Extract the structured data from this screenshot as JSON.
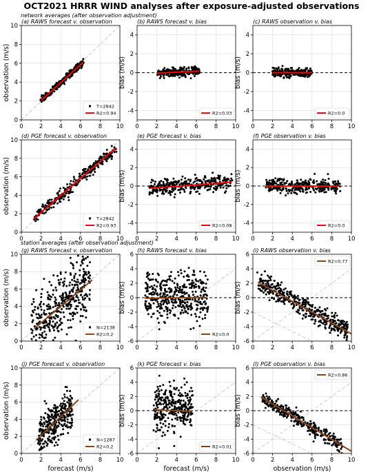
{
  "figure": {
    "title": "OCT2021 HRRR WIND analyses after exposure-adjusted observations",
    "sections": [
      "network averages (after observation adjustment)",
      "station averages (after observation adjustment)"
    ]
  },
  "colors": {
    "points": "#000000",
    "fit_top": "#ff0000",
    "fit_bottom": "#8b4513",
    "one_to_one": "#bbbbbb",
    "zero_line": "#000000"
  },
  "chart_data": [
    {
      "id": "a",
      "type": "scatter",
      "title": "(a) RAWS forecast v. observation",
      "xlabel": "",
      "ylabel": "observation (m/s)",
      "xlim": [
        0,
        10
      ],
      "ylim": [
        0,
        10
      ],
      "xticks": [
        0,
        2,
        4,
        6,
        8,
        10
      ],
      "yticks": [
        0,
        2,
        4,
        6,
        8,
        10
      ],
      "ref_line": "one-to-one",
      "fit": {
        "slope": 0.95,
        "intercept": 0.15,
        "x_range": [
          2.0,
          6.3
        ]
      },
      "cloud": {
        "x_range": [
          2.0,
          6.3
        ],
        "slope": 0.95,
        "intercept": 0.15,
        "spread": 0.18,
        "n": 260
      },
      "legend": {
        "position": "bottom-right",
        "entries": [
          "T=2842",
          "R2=0.94"
        ]
      }
    },
    {
      "id": "b",
      "type": "scatter",
      "title": "(b) RAWS forecast v. bias",
      "xlabel": "",
      "ylabel": "bias (m/s)",
      "xlim": [
        0,
        10
      ],
      "ylim": [
        -5,
        5
      ],
      "xticks": [
        0,
        2,
        4,
        6,
        8,
        10
      ],
      "yticks": [
        -4,
        -2,
        0,
        2,
        4
      ],
      "ref_line": "zero",
      "fit": {
        "slope": 0.05,
        "intercept": -0.15,
        "x_range": [
          2.0,
          6.3
        ]
      },
      "cloud": {
        "x_range": [
          2.0,
          6.3
        ],
        "slope": 0.05,
        "intercept": -0.15,
        "spread": 0.22,
        "n": 260
      },
      "legend": {
        "position": "bottom-right",
        "entries": [
          "R2=0.03"
        ]
      }
    },
    {
      "id": "c",
      "type": "scatter",
      "title": "(c) RAWS observation v. bias",
      "xlabel": "",
      "ylabel": "bias (m/s)",
      "xlim": [
        0,
        10
      ],
      "ylim": [
        -5,
        5
      ],
      "xticks": [
        0,
        2,
        4,
        6,
        8,
        10
      ],
      "yticks": [
        -4,
        -2,
        0,
        2,
        4
      ],
      "ref_line": "zero",
      "fit": {
        "slope": 0.0,
        "intercept": 0.0,
        "x_range": [
          2.0,
          6.0
        ]
      },
      "cloud": {
        "x_range": [
          2.0,
          6.0
        ],
        "slope": 0.0,
        "intercept": 0.0,
        "spread": 0.22,
        "n": 260
      },
      "legend": {
        "position": "bottom-right",
        "entries": [
          "R2=0.0"
        ]
      }
    },
    {
      "id": "d",
      "type": "scatter",
      "title": "(d) PGE forecast v. observation",
      "xlabel": "",
      "ylabel": "observation (m/s)",
      "xlim": [
        0,
        10
      ],
      "ylim": [
        0,
        10
      ],
      "xticks": [
        0,
        2,
        4,
        6,
        8,
        10
      ],
      "yticks": [
        0,
        2,
        4,
        6,
        8,
        10
      ],
      "ref_line": "one-to-one",
      "fit": {
        "slope": 0.92,
        "intercept": 0.3,
        "x_range": [
          1.2,
          9.6
        ]
      },
      "cloud": {
        "x_range": [
          1.2,
          9.6
        ],
        "slope": 0.92,
        "intercept": 0.3,
        "spread": 0.35,
        "n": 320
      },
      "legend": {
        "position": "bottom-right",
        "entries": [
          "T=2842",
          "R2=0.93"
        ]
      }
    },
    {
      "id": "e",
      "type": "scatter",
      "title": "(e) PGE forecast v. bias",
      "xlabel": "",
      "ylabel": "bias (m/s)",
      "xlim": [
        0,
        10
      ],
      "ylim": [
        -5,
        5
      ],
      "xticks": [
        0,
        2,
        4,
        6,
        8,
        10
      ],
      "yticks": [
        -4,
        -2,
        0,
        2,
        4
      ],
      "ref_line": "zero",
      "fit": {
        "slope": 0.08,
        "intercept": -0.35,
        "x_range": [
          1.2,
          9.6
        ]
      },
      "cloud": {
        "x_range": [
          1.2,
          9.6
        ],
        "slope": 0.08,
        "intercept": -0.35,
        "spread": 0.4,
        "n": 320
      },
      "legend": {
        "position": "bottom-right",
        "entries": [
          "R2=0.08"
        ]
      }
    },
    {
      "id": "f",
      "type": "scatter",
      "title": "(f) PGE observation v. bias",
      "xlabel": "",
      "ylabel": "bias (m/s)",
      "xlim": [
        0,
        10
      ],
      "ylim": [
        -5,
        5
      ],
      "xticks": [
        0,
        2,
        4,
        6,
        8,
        10
      ],
      "yticks": [
        -4,
        -2,
        0,
        2,
        4
      ],
      "ref_line": "zero",
      "fit": {
        "slope": 0.0,
        "intercept": 0.0,
        "x_range": [
          1.3,
          8.8
        ]
      },
      "cloud": {
        "x_range": [
          1.3,
          8.8
        ],
        "slope": 0.0,
        "intercept": 0.0,
        "spread": 0.4,
        "n": 320
      },
      "legend": {
        "position": "bottom-right",
        "entries": [
          "R2=0.0"
        ]
      }
    },
    {
      "id": "g",
      "type": "scatter",
      "title": "(g) RAWS forecast v. observation",
      "xlabel": "",
      "ylabel": "observation (m/s)",
      "xlim": [
        0,
        10
      ],
      "ylim": [
        0,
        10
      ],
      "xticks": [
        0,
        2,
        4,
        6,
        8,
        10
      ],
      "yticks": [
        0,
        2,
        4,
        6,
        8,
        10
      ],
      "ref_line": "one-to-one",
      "fit": {
        "slope": 0.95,
        "intercept": 0.2,
        "x_range": [
          1.3,
          7.2
        ]
      },
      "cloud": {
        "x_range": [
          1.0,
          7.0
        ],
        "slope": 0.95,
        "intercept": 0.2,
        "spread": 1.8,
        "n": 420
      },
      "legend": {
        "position": "bottom-right",
        "entries": [
          "N=2138",
          "R2=0.2"
        ]
      }
    },
    {
      "id": "h",
      "type": "scatter",
      "title": "(h) RAWS forecast v. bias",
      "xlabel": "",
      "ylabel": "bias (m/s)",
      "xlim": [
        0,
        10
      ],
      "ylim": [
        -6,
        6
      ],
      "xticks": [
        0,
        2,
        4,
        6,
        8,
        10
      ],
      "yticks": [
        -6,
        -4,
        -2,
        0,
        2,
        4,
        6
      ],
      "ref_line": "zero",
      "fit": {
        "slope": 0.02,
        "intercept": -0.1,
        "x_range": [
          0.8,
          7.0
        ]
      },
      "cloud": {
        "x_range": [
          0.8,
          7.2
        ],
        "slope": 0.0,
        "intercept": 0.2,
        "spread": 1.7,
        "n": 420
      },
      "legend": {
        "position": "bottom-right",
        "entries": [
          "R2=0.0"
        ]
      }
    },
    {
      "id": "i",
      "type": "scatter",
      "title": "(i) RAWS observation v. bias",
      "xlabel": "",
      "ylabel": "bias (m/s)",
      "xlim": [
        0,
        10
      ],
      "ylim": [
        -6,
        6
      ],
      "xticks": [
        0,
        2,
        4,
        6,
        8,
        10
      ],
      "yticks": [
        -6,
        -4,
        -2,
        0,
        2,
        4,
        6
      ],
      "ref_line": "zero",
      "fit": {
        "slope": -0.75,
        "intercept": 2.5,
        "x_range": [
          0.5,
          10.0
        ]
      },
      "cloud": {
        "x_range": [
          0.5,
          9.6
        ],
        "slope": -0.75,
        "intercept": 2.6,
        "spread": 0.7,
        "n": 420
      },
      "legend": {
        "position": "top-right",
        "entries": [
          "R2=0.77"
        ]
      }
    },
    {
      "id": "j",
      "type": "scatter",
      "title": "(j) PGE forecast v. observation",
      "xlabel": "forecast (m/s)",
      "ylabel": "observation (m/s)",
      "xlim": [
        0,
        10
      ],
      "ylim": [
        0,
        10
      ],
      "xticks": [
        0,
        2,
        4,
        6,
        8,
        10
      ],
      "yticks": [
        0,
        2,
        4,
        6,
        8,
        10
      ],
      "ref_line": "one-to-one",
      "fit": {
        "slope": 1.1,
        "intercept": -0.1,
        "x_range": [
          1.5,
          5.8
        ]
      },
      "cloud": {
        "x_range": [
          1.7,
          5.2
        ],
        "slope": 1.05,
        "intercept": 0.0,
        "spread": 1.2,
        "n": 320
      },
      "legend": {
        "position": "bottom-right",
        "entries": [
          "N=1287",
          "R2=0.2"
        ]
      }
    },
    {
      "id": "k",
      "type": "scatter",
      "title": "(k) PGE forecast v. bias",
      "xlabel": "forecast (m/s)",
      "ylabel": "bias (m/s)",
      "xlim": [
        0,
        10
      ],
      "ylim": [
        -6,
        6
      ],
      "xticks": [
        0,
        2,
        4,
        6,
        8,
        10
      ],
      "yticks": [
        -6,
        -4,
        -2,
        0,
        2,
        4,
        6
      ],
      "ref_line": "zero",
      "fit": {
        "slope": -0.05,
        "intercept": 0.2,
        "x_range": [
          1.7,
          5.6
        ]
      },
      "cloud": {
        "x_range": [
          1.7,
          5.6
        ],
        "slope": 0.0,
        "intercept": 0.3,
        "spread": 1.6,
        "n": 320
      },
      "legend": {
        "position": "bottom-right",
        "entries": [
          "R2=0.01"
        ]
      }
    },
    {
      "id": "l",
      "type": "scatter",
      "title": "(l) PGE observation v. bias",
      "xlabel": "observation (m/s)",
      "ylabel": "bias (m/s)",
      "xlim": [
        0,
        10
      ],
      "ylim": [
        -6,
        6
      ],
      "xticks": [
        0,
        2,
        4,
        6,
        8,
        10
      ],
      "yticks": [
        -6,
        -4,
        -2,
        0,
        2,
        4,
        6
      ],
      "ref_line": "zero",
      "fit": {
        "slope": -0.83,
        "intercept": 2.6,
        "x_range": [
          0.8,
          10.0
        ]
      },
      "cloud": {
        "x_range": [
          1.0,
          9.0
        ],
        "slope": -0.83,
        "intercept": 2.6,
        "spread": 0.5,
        "n": 320
      },
      "legend": {
        "position": "top-right",
        "entries": [
          "R2=0.86"
        ]
      }
    }
  ]
}
